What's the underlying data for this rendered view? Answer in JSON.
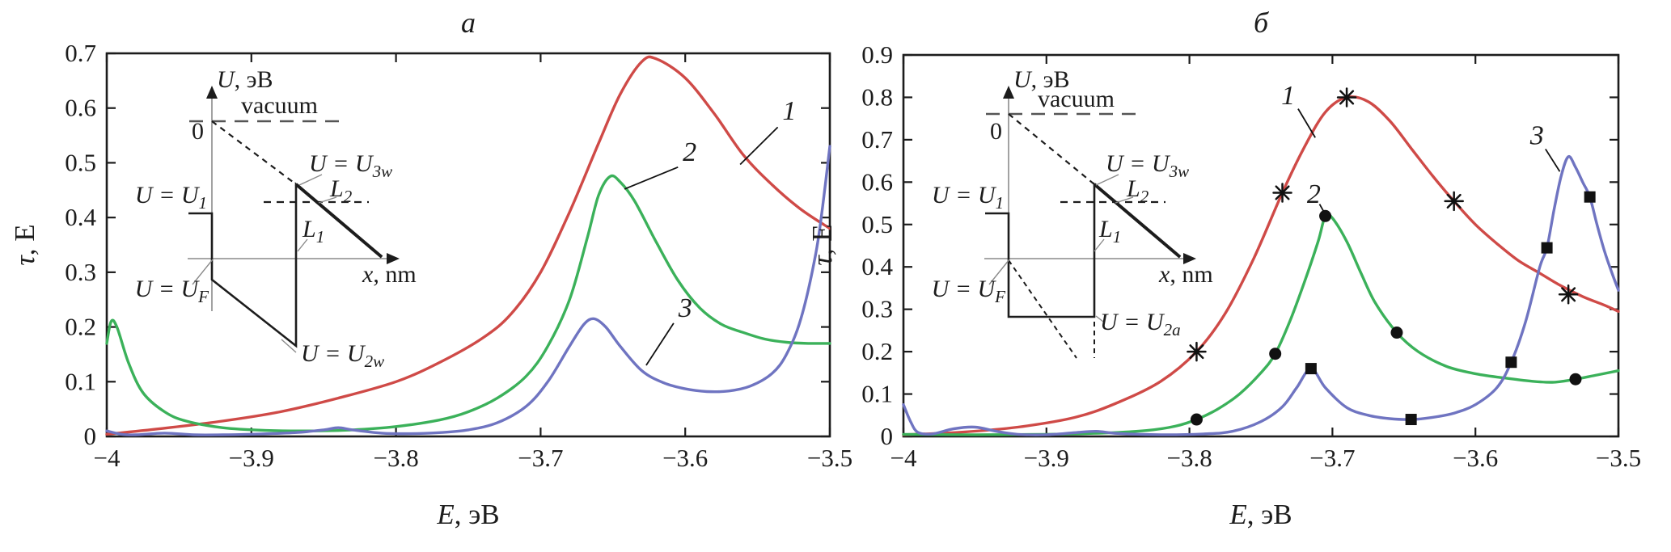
{
  "colors": {
    "curve1_red": "#cf4a47",
    "curve2_green": "#3bb15a",
    "curve3_blue": "#6f74c1",
    "ink": "#1c1c1c",
    "inset_gray": "#8a8a8a"
  },
  "figure": {
    "panels": [
      {
        "title": "a",
        "x_axis_label": {
          "main": "E",
          "rest": ", эВ"
        },
        "y_axis_label": {
          "main": "τ",
          "rest": ", E"
        },
        "x_tick_labels": [
          "−4",
          "−3.9",
          "−3.8",
          "−3.7",
          "−3.6",
          "−3.5"
        ],
        "y_tick_labels": [
          "0",
          "0.1",
          "0.2",
          "0.3",
          "0.4",
          "0.5",
          "0.6",
          "0.7"
        ],
        "curve_labels": [
          {
            "label": "1",
            "tx": -3.528,
            "ty": 0.595,
            "lx1": -3.536,
            "ly1": 0.565,
            "lx2": -3.562,
            "ly2": 0.497
          },
          {
            "label": "2",
            "tx": -3.597,
            "ty": 0.52,
            "lx1": -3.605,
            "ly1": 0.492,
            "lx2": -3.642,
            "ly2": 0.452
          },
          {
            "label": "3",
            "tx": -3.6,
            "ty": 0.235,
            "lx1": -3.608,
            "ly1": 0.207,
            "lx2": -3.627,
            "ly2": 0.13
          }
        ]
      },
      {
        "title": "б",
        "x_axis_label": {
          "main": "E",
          "rest": ", эВ"
        },
        "y_axis_label": {
          "main": "τ",
          "rest": ", E"
        },
        "x_tick_labels": [
          "−4",
          "−3.9",
          "−3.8",
          "−3.7",
          "−3.6",
          "−3.5"
        ],
        "y_tick_labels": [
          "0",
          "0.1",
          "0.2",
          "0.3",
          "0.4",
          "0.5",
          "0.6",
          "0.7",
          "0.8",
          "0.9"
        ],
        "curve_labels": [
          {
            "label": "1",
            "tx": -3.731,
            "ty": 0.805,
            "lx1": -3.724,
            "ly1": 0.773,
            "lx2": -3.712,
            "ly2": 0.705
          },
          {
            "label": "2",
            "tx": -3.713,
            "ty": 0.572,
            "lx1": -3.709,
            "ly1": 0.548,
            "lx2": -3.7055,
            "ly2": 0.527
          },
          {
            "label": "3",
            "tx": -3.557,
            "ty": 0.71,
            "lx1": -3.551,
            "ly1": 0.678,
            "lx2": -3.541,
            "ly2": 0.625
          }
        ]
      }
    ]
  },
  "insets": [
    {
      "labels": {
        "u_axis": {
          "main": "U",
          "rest": ", эВ"
        },
        "vacuum": "vacuum",
        "zero": "0",
        "u1": {
          "main": "U = U",
          "sub": "1"
        },
        "u3w": {
          "main": "U = U",
          "sub": "3w"
        },
        "l2": {
          "main": "L",
          "sub": "2"
        },
        "l1": {
          "main": "L",
          "sub": "1"
        },
        "uf": {
          "main": "U = U",
          "sub": "F"
        },
        "x_axis": {
          "main": "x",
          "rest": ", nm"
        },
        "bottom": {
          "main": "U = U",
          "sub": "2w"
        }
      }
    },
    {
      "labels": {
        "u_axis": {
          "main": "U",
          "rest": ", эВ"
        },
        "vacuum": "vacuum",
        "zero": "0",
        "u1": {
          "main": "U = U",
          "sub": "1"
        },
        "u3w": {
          "main": "U = U",
          "sub": "3w"
        },
        "l2": {
          "main": "L",
          "sub": "2"
        },
        "l1": {
          "main": "L",
          "sub": "1"
        },
        "uf": {
          "main": "U = U",
          "sub": "F"
        },
        "x_axis": {
          "main": "x",
          "rest": ", nm"
        },
        "bottom": {
          "main": "U = U",
          "sub": "2a"
        }
      }
    }
  ],
  "chart_data": [
    {
      "type": "line",
      "id": "a",
      "title": "a",
      "xlabel": "E, эВ",
      "ylabel": "τ, E",
      "xlim": [
        -4,
        -3.5
      ],
      "ylim": [
        0,
        0.7
      ],
      "x_tick_step": 0.1,
      "y_tick_step": 0.1,
      "grid": false,
      "legend": "none",
      "series": [
        {
          "name": "1",
          "color": "#cf4a47",
          "marker": "none",
          "points": [
            [
              -4,
              0.004
            ],
            [
              -3.96,
              0.015
            ],
            [
              -3.92,
              0.028
            ],
            [
              -3.88,
              0.045
            ],
            [
              -3.84,
              0.07
            ],
            [
              -3.8,
              0.1
            ],
            [
              -3.77,
              0.135
            ],
            [
              -3.74,
              0.18
            ],
            [
              -3.72,
              0.225
            ],
            [
              -3.7,
              0.3
            ],
            [
              -3.68,
              0.41
            ],
            [
              -3.66,
              0.535
            ],
            [
              -3.645,
              0.625
            ],
            [
              -3.63,
              0.685
            ],
            [
              -3.62,
              0.69
            ],
            [
              -3.6,
              0.655
            ],
            [
              -3.58,
              0.59
            ],
            [
              -3.56,
              0.515
            ],
            [
              -3.54,
              0.46
            ],
            [
              -3.52,
              0.415
            ],
            [
              -3.5,
              0.38
            ]
          ]
        },
        {
          "name": "2",
          "color": "#3bb15a",
          "marker": "none",
          "points": [
            [
              -4,
              0.17
            ],
            [
              -3.997,
              0.21
            ],
            [
              -3.993,
              0.2
            ],
            [
              -3.985,
              0.135
            ],
            [
              -3.975,
              0.08
            ],
            [
              -3.96,
              0.045
            ],
            [
              -3.945,
              0.028
            ],
            [
              -3.92,
              0.016
            ],
            [
              -3.89,
              0.011
            ],
            [
              -3.86,
              0.01
            ],
            [
              -3.83,
              0.012
            ],
            [
              -3.8,
              0.018
            ],
            [
              -3.77,
              0.03
            ],
            [
              -3.75,
              0.045
            ],
            [
              -3.73,
              0.07
            ],
            [
              -3.71,
              0.11
            ],
            [
              -3.695,
              0.165
            ],
            [
              -3.68,
              0.25
            ],
            [
              -3.668,
              0.36
            ],
            [
              -3.66,
              0.44
            ],
            [
              -3.652,
              0.475
            ],
            [
              -3.645,
              0.465
            ],
            [
              -3.635,
              0.43
            ],
            [
              -3.62,
              0.355
            ],
            [
              -3.605,
              0.285
            ],
            [
              -3.59,
              0.235
            ],
            [
              -3.575,
              0.205
            ],
            [
              -3.56,
              0.19
            ],
            [
              -3.545,
              0.178
            ],
            [
              -3.53,
              0.172
            ],
            [
              -3.515,
              0.17
            ],
            [
              -3.5,
              0.17
            ]
          ]
        },
        {
          "name": "3",
          "color": "#6f74c1",
          "marker": "none",
          "points": [
            [
              -4,
              0.01
            ],
            [
              -3.99,
              0.004
            ],
            [
              -3.98,
              0.003
            ],
            [
              -3.96,
              0.006
            ],
            [
              -3.94,
              0.003
            ],
            [
              -3.92,
              0.003
            ],
            [
              -3.9,
              0.004
            ],
            [
              -3.87,
              0.007
            ],
            [
              -3.85,
              0.012
            ],
            [
              -3.84,
              0.016
            ],
            [
              -3.83,
              0.012
            ],
            [
              -3.81,
              0.006
            ],
            [
              -3.79,
              0.005
            ],
            [
              -3.77,
              0.007
            ],
            [
              -3.75,
              0.012
            ],
            [
              -3.73,
              0.025
            ],
            [
              -3.71,
              0.055
            ],
            [
              -3.695,
              0.1
            ],
            [
              -3.68,
              0.165
            ],
            [
              -3.67,
              0.205
            ],
            [
              -3.663,
              0.215
            ],
            [
              -3.655,
              0.2
            ],
            [
              -3.645,
              0.165
            ],
            [
              -3.63,
              0.12
            ],
            [
              -3.615,
              0.098
            ],
            [
              -3.6,
              0.087
            ],
            [
              -3.585,
              0.082
            ],
            [
              -3.57,
              0.083
            ],
            [
              -3.555,
              0.092
            ],
            [
              -3.54,
              0.115
            ],
            [
              -3.53,
              0.15
            ],
            [
              -3.52,
              0.215
            ],
            [
              -3.51,
              0.33
            ],
            [
              -3.505,
              0.42
            ],
            [
              -3.5,
              0.53
            ]
          ]
        }
      ]
    },
    {
      "type": "line",
      "id": "b",
      "title": "б",
      "xlabel": "E, эВ",
      "ylabel": "τ, E",
      "xlim": [
        -4,
        -3.5
      ],
      "ylim": [
        0,
        0.9
      ],
      "x_tick_step": 0.1,
      "y_tick_step": 0.1,
      "grid": false,
      "legend": "none",
      "series": [
        {
          "name": "1",
          "color": "#cf4a47",
          "marker": "asterisk",
          "points": [
            [
              -4,
              0.004
            ],
            [
              -3.96,
              0.01
            ],
            [
              -3.92,
              0.022
            ],
            [
              -3.88,
              0.045
            ],
            [
              -3.85,
              0.08
            ],
            [
              -3.82,
              0.13
            ],
            [
              -3.795,
              0.2
            ],
            [
              -3.775,
              0.29
            ],
            [
              -3.755,
              0.42
            ],
            [
              -3.735,
              0.575
            ],
            [
              -3.72,
              0.68
            ],
            [
              -3.705,
              0.765
            ],
            [
              -3.69,
              0.8
            ],
            [
              -3.675,
              0.79
            ],
            [
              -3.66,
              0.745
            ],
            [
              -3.645,
              0.68
            ],
            [
              -3.63,
              0.615
            ],
            [
              -3.615,
              0.555
            ],
            [
              -3.6,
              0.5
            ],
            [
              -3.585,
              0.455
            ],
            [
              -3.57,
              0.415
            ],
            [
              -3.555,
              0.385
            ],
            [
              -3.54,
              0.355
            ],
            [
              -3.525,
              0.33
            ],
            [
              -3.51,
              0.31
            ],
            [
              -3.5,
              0.295
            ]
          ],
          "marker_points": [
            [
              -3.795,
              0.2
            ],
            [
              -3.735,
              0.575
            ],
            [
              -3.69,
              0.8
            ],
            [
              -3.615,
              0.555
            ],
            [
              -3.535,
              0.335
            ]
          ]
        },
        {
          "name": "2",
          "color": "#3bb15a",
          "marker": "circle",
          "points": [
            [
              -4,
              0.005
            ],
            [
              -3.95,
              0.004
            ],
            [
              -3.9,
              0.005
            ],
            [
              -3.86,
              0.008
            ],
            [
              -3.83,
              0.014
            ],
            [
              -3.81,
              0.024
            ],
            [
              -3.795,
              0.04
            ],
            [
              -3.78,
              0.065
            ],
            [
              -3.765,
              0.1
            ],
            [
              -3.75,
              0.15
            ],
            [
              -3.74,
              0.195
            ],
            [
              -3.73,
              0.27
            ],
            [
              -3.72,
              0.36
            ],
            [
              -3.71,
              0.46
            ],
            [
              -3.705,
              0.52
            ],
            [
              -3.7,
              0.515
            ],
            [
              -3.69,
              0.46
            ],
            [
              -3.68,
              0.385
            ],
            [
              -3.67,
              0.315
            ],
            [
              -3.655,
              0.245
            ],
            [
              -3.64,
              0.2
            ],
            [
              -3.62,
              0.165
            ],
            [
              -3.6,
              0.148
            ],
            [
              -3.58,
              0.138
            ],
            [
              -3.56,
              0.13
            ],
            [
              -3.545,
              0.128
            ],
            [
              -3.53,
              0.135
            ],
            [
              -3.515,
              0.145
            ],
            [
              -3.5,
              0.155
            ]
          ],
          "marker_points": [
            [
              -3.795,
              0.04
            ],
            [
              -3.74,
              0.195
            ],
            [
              -3.705,
              0.52
            ],
            [
              -3.655,
              0.245
            ],
            [
              -3.53,
              0.135
            ]
          ]
        },
        {
          "name": "3",
          "color": "#6f74c1",
          "marker": "square",
          "points": [
            [
              -4,
              0.075
            ],
            [
              -3.995,
              0.035
            ],
            [
              -3.99,
              0.01
            ],
            [
              -3.98,
              0.006
            ],
            [
              -3.965,
              0.018
            ],
            [
              -3.95,
              0.022
            ],
            [
              -3.935,
              0.012
            ],
            [
              -3.92,
              0.005
            ],
            [
              -3.9,
              0.004
            ],
            [
              -3.88,
              0.009
            ],
            [
              -3.865,
              0.012
            ],
            [
              -3.85,
              0.007
            ],
            [
              -3.82,
              0.004
            ],
            [
              -3.79,
              0.006
            ],
            [
              -3.77,
              0.012
            ],
            [
              -3.75,
              0.035
            ],
            [
              -3.735,
              0.07
            ],
            [
              -3.725,
              0.115
            ],
            [
              -3.715,
              0.16
            ],
            [
              -3.705,
              0.115
            ],
            [
              -3.69,
              0.068
            ],
            [
              -3.675,
              0.05
            ],
            [
              -3.66,
              0.042
            ],
            [
              -3.645,
              0.04
            ],
            [
              -3.63,
              0.045
            ],
            [
              -3.615,
              0.055
            ],
            [
              -3.6,
              0.075
            ],
            [
              -3.585,
              0.115
            ],
            [
              -3.575,
              0.175
            ],
            [
              -3.565,
              0.27
            ],
            [
              -3.555,
              0.4
            ],
            [
              -3.55,
              0.445
            ],
            [
              -3.545,
              0.535
            ],
            [
              -3.54,
              0.615
            ],
            [
              -3.535,
              0.66
            ],
            [
              -3.53,
              0.635
            ],
            [
              -3.525,
              0.6
            ],
            [
              -3.52,
              0.565
            ],
            [
              -3.515,
              0.5
            ],
            [
              -3.51,
              0.44
            ],
            [
              -3.505,
              0.39
            ],
            [
              -3.5,
              0.345
            ]
          ],
          "marker_points": [
            [
              -3.715,
              0.16
            ],
            [
              -3.645,
              0.04
            ],
            [
              -3.575,
              0.175
            ],
            [
              -3.55,
              0.445
            ],
            [
              -3.52,
              0.565
            ]
          ]
        }
      ]
    }
  ]
}
